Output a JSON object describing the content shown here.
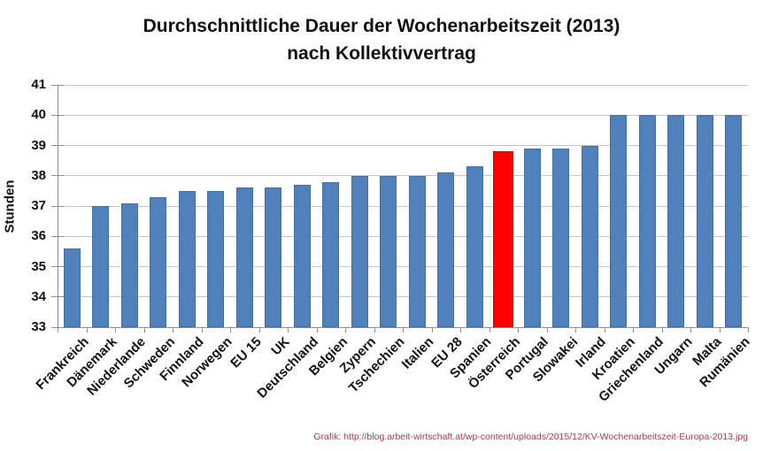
{
  "title": {
    "line1": "Durchschnittliche Dauer der Wochenarbeitszeit (2013)",
    "line2": "nach Kollektivvertrag"
  },
  "y_axis": {
    "label": "Stunden",
    "ticks": [
      41,
      40,
      39,
      38,
      37,
      36,
      35,
      34,
      33
    ]
  },
  "footer": "Grafik: http://blog.arbeit-wirtschaft.at/wp-content/uploads/2015/12/KV-Wochenarbeitszeit-Europa-2013.jpg",
  "colors": {
    "bar": "#4F81BD",
    "bar_edge": "#44709E",
    "highlight": "#FF0000",
    "highlight_edge": "#D40000",
    "gridline": "#C6C6C6",
    "axis": "#8E8E8E",
    "text": "#111111",
    "footer_text": "#A13B50"
  },
  "chart_data": {
    "type": "bar",
    "title": "Durchschnittliche Dauer der Wochenarbeitszeit (2013) nach Kollektivvertrag",
    "xlabel": "",
    "ylabel": "Stunden",
    "ylim": [
      33,
      41
    ],
    "grid": true,
    "legend": false,
    "categories": [
      "Frankreich",
      "Dänemark",
      "Niederlande",
      "Schweden",
      "Finnland",
      "Norwegen",
      "EU 15",
      "UK",
      "Deutschland",
      "Belgien",
      "Zypern",
      "Tschechien",
      "Italien",
      "EU 28",
      "Spanien",
      "Österreich",
      "Portugal",
      "Slowakei",
      "Irland",
      "Kroatien",
      "Griechenland",
      "Ungarn",
      "Malta",
      "Rumänien"
    ],
    "values": [
      35.6,
      37.0,
      37.1,
      37.3,
      37.5,
      37.5,
      37.6,
      37.6,
      37.7,
      37.8,
      38.0,
      38.0,
      38.0,
      38.1,
      38.3,
      38.8,
      38.9,
      38.9,
      39.0,
      40.0,
      40.0,
      40.0,
      40.0,
      40.0
    ],
    "highlighted_category": "Österreich"
  }
}
